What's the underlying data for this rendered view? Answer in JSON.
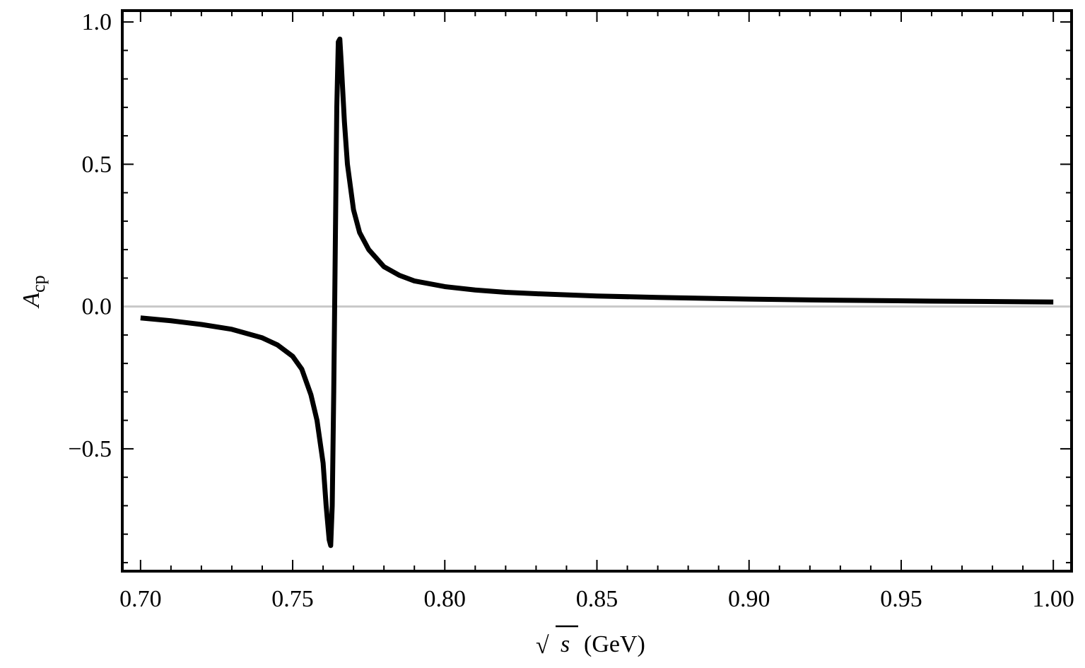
{
  "chart_data": {
    "type": "line",
    "title": "",
    "xlabel": "√s (GeV)",
    "xlabel_parts": {
      "radicand": "s",
      "unit": "(GeV)"
    },
    "ylabel": "Acp",
    "ylabel_parts": {
      "main": "A",
      "sub": "cp"
    },
    "xlim": [
      0.694,
      1.006
    ],
    "ylim": [
      -0.93,
      1.04
    ],
    "x_ticks": [
      {
        "value": 0.7,
        "label": "0.70"
      },
      {
        "value": 0.75,
        "label": "0.75"
      },
      {
        "value": 0.8,
        "label": "0.80"
      },
      {
        "value": 0.85,
        "label": "0.85"
      },
      {
        "value": 0.9,
        "label": "0.90"
      },
      {
        "value": 0.95,
        "label": "0.95"
      },
      {
        "value": 1.0,
        "label": "1.00"
      }
    ],
    "y_ticks": [
      {
        "value": -0.5,
        "label": "−0.5"
      },
      {
        "value": 0.0,
        "label": "0.0"
      },
      {
        "value": 0.5,
        "label": "0.5"
      },
      {
        "value": 1.0,
        "label": "1.0"
      }
    ],
    "x_minor_step": 0.01,
    "y_minor_step": 0.1,
    "reference_line": {
      "y": 0.0,
      "color": "#c8c8c8"
    },
    "grid": false,
    "colors": {
      "line": "#000000",
      "frame": "#000000",
      "zero_line": "#c8c8c8"
    },
    "series": [
      {
        "x": [
          0.7,
          0.71,
          0.72,
          0.73,
          0.74,
          0.745,
          0.75,
          0.753,
          0.756,
          0.758,
          0.76,
          0.761,
          0.762,
          0.7625,
          0.763,
          0.7635,
          0.764,
          0.7645,
          0.765,
          0.7655,
          0.766,
          0.767,
          0.768,
          0.77,
          0.772,
          0.775,
          0.78,
          0.785,
          0.79,
          0.8,
          0.81,
          0.82,
          0.83,
          0.85,
          0.87,
          0.9,
          0.93,
          0.96,
          1.0
        ],
        "y": [
          -0.04,
          -0.05,
          -0.063,
          -0.08,
          -0.11,
          -0.135,
          -0.175,
          -0.22,
          -0.31,
          -0.4,
          -0.55,
          -0.7,
          -0.82,
          -0.84,
          -0.7,
          -0.3,
          0.2,
          0.7,
          0.93,
          0.94,
          0.85,
          0.65,
          0.5,
          0.34,
          0.26,
          0.2,
          0.14,
          0.11,
          0.09,
          0.07,
          0.058,
          0.05,
          0.045,
          0.037,
          0.032,
          0.026,
          0.022,
          0.019,
          0.016
        ]
      }
    ]
  }
}
